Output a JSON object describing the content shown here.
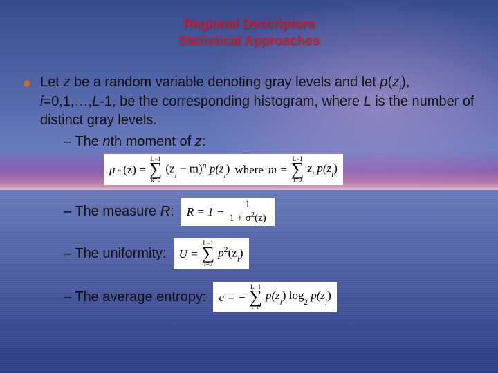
{
  "background": {
    "sky_top": "#3a4b8f",
    "horizon_glow": "#d8b8d0",
    "water_bottom": "#2c3c85"
  },
  "title": {
    "line1": "Regional Descriptors",
    "line2": "Statistical Approaches",
    "color": "#c02030",
    "fontsize": 19
  },
  "bullet": {
    "text_parts": {
      "p1": "Let ",
      "z": "z",
      "p2": " be a random variable denoting gray levels and let ",
      "pz": "p",
      "paren_open": "(",
      "zi": "z",
      "sub_i": "i",
      "paren_close": ")",
      "comma1": ", ",
      "i_eq": "i",
      "range": "=0,1,…,",
      "L": "L",
      "minus1": "-1, be the corresponding histogram, where ",
      "L2": "L",
      "tail": " is the number of distinct gray levels."
    },
    "dot_color": "#c07030"
  },
  "subitems": {
    "moment": {
      "label_prefix": "– The ",
      "n": "n",
      "label_mid": "th moment of ",
      "z": "z",
      "colon": ":"
    },
    "measureR": {
      "label_prefix": "– The measure ",
      "R": "R",
      "colon": ":"
    },
    "uniformity": {
      "label": "– The uniformity:"
    },
    "entropy": {
      "label": "– The average entropy:"
    }
  },
  "formulas": {
    "moment": {
      "mu": "μ",
      "sub_n": "n",
      "arg": "(z) =",
      "sum_top": "L−1",
      "sum_bot": "k=0",
      "term1": "(z",
      "sub_i": "i",
      "term2": " − m)",
      "sup_n": "n",
      "p": " p(z",
      "p_sub": "i",
      "p_close": ")",
      "where": " where ",
      "m_eq": "m =",
      "sum2_top": "L−1",
      "sum2_bot": "i=0",
      "z2": "z",
      "z2_sub": "i",
      "p2": " p(z",
      "p2_sub": "i",
      "p2_close": ")"
    },
    "R": {
      "lhs": "R = 1 −",
      "num": "1",
      "den_pre": "1 + σ",
      "den_sup": "2",
      "den_post": "(z)"
    },
    "U": {
      "lhs": "U =",
      "sum_top": "L−1",
      "sum_bot": "i=0",
      "p": "p",
      "sup": "2",
      "arg": "(z",
      "sub": "i",
      "close": ")"
    },
    "E": {
      "lhs": "e = −",
      "sum_top": "L−1",
      "sum_bot": "i=0",
      "p1": "p(z",
      "sub1": "i",
      "mid": ") log",
      "log_sub": "2",
      "p2": " p(z",
      "sub2": "i",
      "close": ")"
    }
  },
  "formula_style": {
    "bg": "#ffffff",
    "font": "Times New Roman",
    "fontsize": 17
  }
}
